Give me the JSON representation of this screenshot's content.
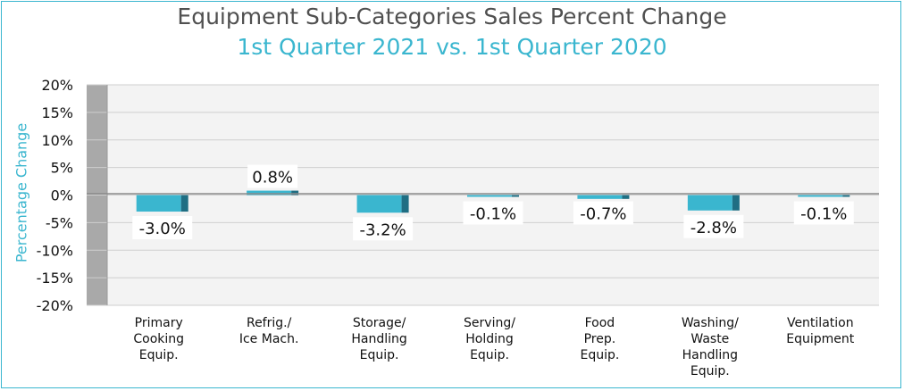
{
  "chart_data": {
    "type": "bar",
    "title": "Equipment Sub-Categories Sales Percent Change",
    "subtitle": "1st Quarter 2021 vs. 1st Quarter 2020",
    "ylabel": "Percentage Change",
    "xlabel": "",
    "ylim": [
      -20,
      20
    ],
    "yticks": [
      "20%",
      "15%",
      "10%",
      "5%",
      "0%",
      "-5%",
      "-10%",
      "-15%",
      "-20%"
    ],
    "categories": [
      [
        "Primary",
        "Cooking",
        "Equip."
      ],
      [
        "Refrig./",
        "Ice Mach."
      ],
      [
        "Storage/",
        "Handling",
        "Equip."
      ],
      [
        "Serving/",
        "Holding",
        "Equip."
      ],
      [
        "Food",
        "Prep.",
        "Equip."
      ],
      [
        "Washing/",
        "Waste",
        "Handling",
        "Equip."
      ],
      [
        "Ventilation",
        "Equipment"
      ]
    ],
    "values": [
      -3.0,
      0.8,
      -3.2,
      -0.1,
      -0.7,
      -2.8,
      -0.1
    ],
    "data_labels": [
      "-3.0%",
      "0.8%",
      "-3.2%",
      "-0.1%",
      "-0.7%",
      "-2.8%",
      "-0.1%"
    ],
    "grid": true,
    "colors": {
      "bar": "#3ab6cf",
      "bar_side": "#1f6e83",
      "wall": "#a9a9a9",
      "plot_bg": "#f3f3f3",
      "title": "#505050",
      "accent": "#3ab6cf"
    }
  }
}
